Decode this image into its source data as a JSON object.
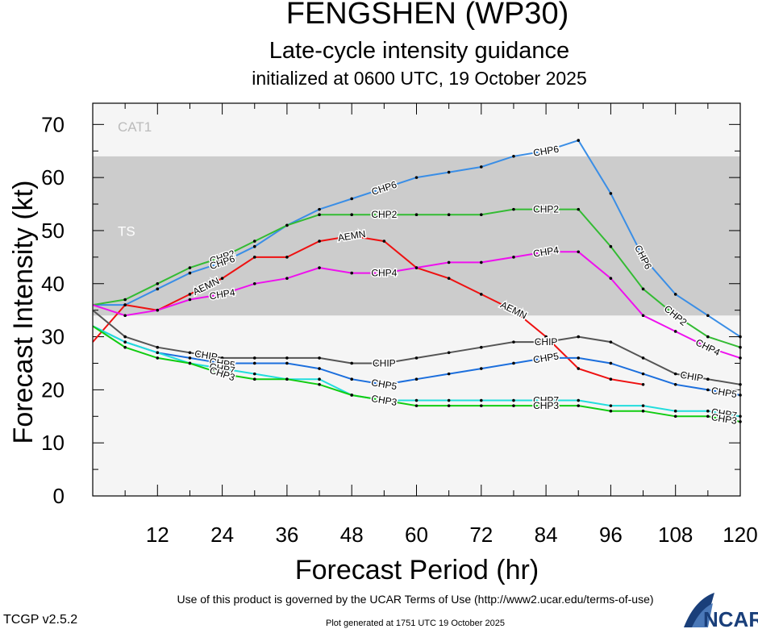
{
  "chart_data": {
    "type": "line",
    "title": "FENGSHEN (WP30)",
    "subtitle": "Late-cycle intensity guidance",
    "initialized": "initialized at 0600 UTC, 19 October 2025",
    "xlabel": "Forecast Period (hr)",
    "ylabel": "Forecast Intensity (kt)",
    "xlim": [
      0,
      120
    ],
    "ylim": [
      0,
      70
    ],
    "xticks": [
      12,
      24,
      36,
      48,
      60,
      72,
      84,
      96,
      108,
      120
    ],
    "yticks": [
      0,
      10,
      20,
      30,
      40,
      50,
      60,
      70
    ],
    "bands": [
      {
        "name": "TS",
        "from": 34,
        "to": 64,
        "color": "#cccccc"
      },
      {
        "name": "CAT1",
        "from": 64,
        "to": 74,
        "color": "#f5f5f5"
      }
    ],
    "series": [
      {
        "name": "CHP6",
        "color": "#3a8ee6",
        "x": [
          0,
          6,
          12,
          18,
          24,
          30,
          36,
          42,
          48,
          54,
          60,
          66,
          72,
          78,
          84,
          90,
          96,
          102,
          108,
          114,
          120
        ],
        "y": [
          36,
          36,
          39,
          42,
          44,
          47,
          51,
          54,
          56,
          58,
          60,
          61,
          62,
          64,
          65,
          67,
          57,
          45,
          38,
          34,
          30
        ]
      },
      {
        "name": "CHP2",
        "color": "#33bb33",
        "x": [
          0,
          6,
          12,
          18,
          24,
          30,
          36,
          42,
          48,
          54,
          60,
          66,
          72,
          78,
          84,
          90,
          96,
          102,
          108,
          114,
          120
        ],
        "y": [
          36,
          37,
          40,
          43,
          45,
          48,
          51,
          53,
          53,
          53,
          53,
          53,
          53,
          54,
          54,
          54,
          47,
          39,
          34,
          30,
          28
        ]
      },
      {
        "name": "AEMN",
        "color": "#ee1111",
        "x": [
          0,
          6,
          12,
          18,
          24,
          30,
          36,
          42,
          48,
          54,
          60,
          66,
          72,
          78,
          84,
          90,
          96,
          102
        ],
        "y": [
          29,
          36,
          35,
          38,
          41,
          45,
          45,
          48,
          49,
          48,
          43,
          41,
          38,
          35,
          30,
          24,
          22,
          21
        ]
      },
      {
        "name": "CHP4",
        "color": "#ee11ee",
        "x": [
          0,
          6,
          12,
          18,
          24,
          30,
          36,
          42,
          48,
          54,
          60,
          66,
          72,
          78,
          84,
          90,
          96,
          102,
          108,
          114,
          120
        ],
        "y": [
          36,
          34,
          35,
          37,
          38,
          40,
          41,
          43,
          42,
          42,
          43,
          44,
          44,
          45,
          46,
          46,
          41,
          34,
          31,
          28,
          26
        ]
      },
      {
        "name": "CHIP",
        "color": "#555555",
        "x": [
          0,
          6,
          12,
          18,
          24,
          30,
          36,
          42,
          48,
          54,
          60,
          66,
          72,
          78,
          84,
          90,
          96,
          102,
          108,
          114,
          120
        ],
        "y": [
          35,
          30,
          28,
          27,
          26,
          26,
          26,
          26,
          25,
          25,
          26,
          27,
          28,
          29,
          29,
          30,
          29,
          26,
          23,
          22,
          21
        ]
      },
      {
        "name": "CHP5",
        "color": "#1c6fdd",
        "x": [
          0,
          6,
          12,
          18,
          24,
          30,
          36,
          42,
          48,
          54,
          60,
          66,
          72,
          78,
          84,
          90,
          96,
          102,
          108,
          114,
          120
        ],
        "y": [
          32,
          29,
          27,
          26,
          25,
          25,
          25,
          24,
          22,
          21,
          22,
          23,
          24,
          25,
          26,
          26,
          25,
          23,
          21,
          20,
          19
        ]
      },
      {
        "name": "CHP7",
        "color": "#22dddd",
        "x": [
          0,
          6,
          12,
          18,
          24,
          30,
          36,
          42,
          48,
          54,
          60,
          66,
          72,
          78,
          84,
          90,
          96,
          102,
          108,
          114,
          120
        ],
        "y": [
          32,
          29,
          27,
          25,
          24,
          23,
          22,
          22,
          19,
          18,
          18,
          18,
          18,
          18,
          18,
          18,
          17,
          17,
          16,
          16,
          15
        ]
      },
      {
        "name": "CHP3",
        "color": "#11cc11",
        "x": [
          0,
          6,
          12,
          18,
          24,
          30,
          36,
          42,
          48,
          54,
          60,
          66,
          72,
          78,
          84,
          90,
          96,
          102,
          108,
          114,
          120
        ],
        "y": [
          32,
          28,
          26,
          25,
          23,
          22,
          22,
          21,
          19,
          18,
          17,
          17,
          17,
          17,
          17,
          17,
          16,
          16,
          15,
          15,
          14
        ]
      }
    ],
    "series_labels": [
      {
        "series": "CHP6",
        "at": [
          54,
          84,
          102
        ]
      },
      {
        "series": "CHP2",
        "at": [
          24,
          54,
          84,
          108
        ]
      },
      {
        "series": "CHP6",
        "at": [
          24
        ]
      },
      {
        "series": "AEMN",
        "at": [
          21,
          48,
          78
        ]
      },
      {
        "series": "CHP4",
        "at": [
          24,
          54,
          84,
          114
        ]
      },
      {
        "series": "CHIP",
        "at": [
          21,
          54,
          84,
          111
        ]
      },
      {
        "series": "CHP5",
        "at": [
          24,
          54,
          84,
          117
        ]
      },
      {
        "series": "CHP7",
        "at": [
          24,
          54,
          84,
          117
        ]
      },
      {
        "series": "CHP3",
        "at": [
          24,
          54,
          84,
          117
        ]
      }
    ]
  },
  "footer": {
    "terms": "Use of this product is governed by the UCAR Terms of Use (http://www2.ucar.edu/terms-of-use)",
    "generated": "Plot generated at 1751 UTC   19 October 2025",
    "version": "TCGP v2.5.2",
    "logo": "NCAR"
  }
}
